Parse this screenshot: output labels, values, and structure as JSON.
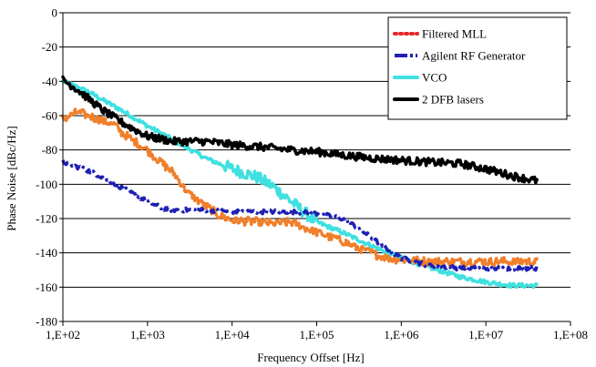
{
  "chart_data": {
    "type": "line",
    "title": "",
    "xlabel": "Frequency Offset [Hz]",
    "ylabel": "Phase Noise [dBc/Hz]",
    "x_scale": "log",
    "xlim": [
      100,
      100000000
    ],
    "ylim": [
      -180,
      0
    ],
    "x_tick_values": [
      100,
      1000,
      10000,
      100000,
      1000000,
      10000000,
      100000000
    ],
    "x_tick_labels": [
      "1,E+02",
      "1,E+03",
      "1,E+04",
      "1,E+05",
      "1,E+06",
      "1,E+07",
      "1,E+08"
    ],
    "y_ticks": [
      0,
      -20,
      -40,
      -60,
      -80,
      -100,
      -120,
      -140,
      -160,
      -180
    ],
    "grid": "horizontal",
    "legend_position": "top-right",
    "series": [
      {
        "name": "Filtered MLL",
        "legend_color": "#e8262a",
        "color": "#f07f2a",
        "style": "dotted",
        "points": [
          [
            100,
            -62
          ],
          [
            150,
            -58
          ],
          [
            200,
            -60
          ],
          [
            300,
            -63
          ],
          [
            400,
            -65
          ],
          [
            500,
            -70
          ],
          [
            700,
            -75
          ],
          [
            1000,
            -80
          ],
          [
            1500,
            -88
          ],
          [
            2000,
            -93
          ],
          [
            3000,
            -105
          ],
          [
            5000,
            -113
          ],
          [
            7000,
            -118
          ],
          [
            10000,
            -121
          ],
          [
            20000,
            -122
          ],
          [
            30000,
            -123
          ],
          [
            50000,
            -122
          ],
          [
            70000,
            -125
          ],
          [
            100000,
            -128
          ],
          [
            200000,
            -133
          ],
          [
            300000,
            -137
          ],
          [
            500000,
            -141
          ],
          [
            700000,
            -143
          ],
          [
            1000000,
            -144
          ],
          [
            2000000,
            -145
          ],
          [
            5000000,
            -145
          ],
          [
            10000000,
            -145
          ],
          [
            40000000,
            -145
          ]
        ]
      },
      {
        "name": "Agilent RF Generator",
        "color": "#1f1fb4",
        "style": "dashdot",
        "points": [
          [
            100,
            -87
          ],
          [
            150,
            -90
          ],
          [
            200,
            -92
          ],
          [
            300,
            -96
          ],
          [
            500,
            -102
          ],
          [
            700,
            -106
          ],
          [
            1000,
            -110
          ],
          [
            1500,
            -114
          ],
          [
            2000,
            -115
          ],
          [
            3000,
            -115
          ],
          [
            5000,
            -115
          ],
          [
            10000,
            -116
          ],
          [
            20000,
            -116
          ],
          [
            50000,
            -116
          ],
          [
            100000,
            -117
          ],
          [
            200000,
            -120
          ],
          [
            300000,
            -125
          ],
          [
            500000,
            -133
          ],
          [
            700000,
            -138
          ],
          [
            1000000,
            -143
          ],
          [
            2000000,
            -147
          ],
          [
            5000000,
            -149
          ],
          [
            10000000,
            -149
          ],
          [
            40000000,
            -149
          ]
        ]
      },
      {
        "name": "VCO",
        "color": "#40e0e0",
        "style": "solid",
        "points": [
          [
            100,
            -40
          ],
          [
            200,
            -46
          ],
          [
            300,
            -51
          ],
          [
            500,
            -57
          ],
          [
            1000,
            -66
          ],
          [
            2000,
            -74
          ],
          [
            3000,
            -79
          ],
          [
            5000,
            -85
          ],
          [
            10000,
            -91
          ],
          [
            20000,
            -96
          ],
          [
            30000,
            -101
          ],
          [
            50000,
            -110
          ],
          [
            70000,
            -116
          ],
          [
            100000,
            -122
          ],
          [
            200000,
            -128
          ],
          [
            300000,
            -132
          ],
          [
            500000,
            -137
          ],
          [
            700000,
            -140
          ],
          [
            1000000,
            -143
          ],
          [
            2000000,
            -148
          ],
          [
            5000000,
            -154
          ],
          [
            10000000,
            -157
          ],
          [
            20000000,
            -159
          ],
          [
            40000000,
            -159
          ]
        ]
      },
      {
        "name": "2 DFB lasers",
        "color": "#000000",
        "style": "solid",
        "points": [
          [
            100,
            -39
          ],
          [
            150,
            -45
          ],
          [
            200,
            -50
          ],
          [
            300,
            -57
          ],
          [
            500,
            -64
          ],
          [
            700,
            -68
          ],
          [
            1000,
            -72
          ],
          [
            2000,
            -75
          ],
          [
            5000,
            -75
          ],
          [
            10000,
            -77
          ],
          [
            20000,
            -78
          ],
          [
            50000,
            -80
          ],
          [
            100000,
            -81
          ],
          [
            200000,
            -83
          ],
          [
            500000,
            -85
          ],
          [
            1000000,
            -86
          ],
          [
            2000000,
            -87
          ],
          [
            5000000,
            -88
          ],
          [
            10000000,
            -91
          ],
          [
            20000000,
            -95
          ],
          [
            40000000,
            -98
          ]
        ]
      }
    ]
  }
}
